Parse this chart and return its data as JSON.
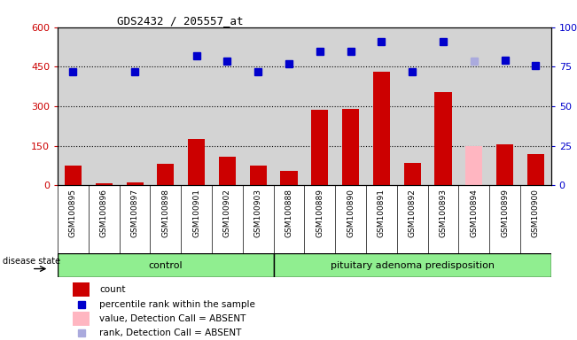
{
  "title": "GDS2432 / 205557_at",
  "samples": [
    "GSM100895",
    "GSM100896",
    "GSM100897",
    "GSM100898",
    "GSM100901",
    "GSM100902",
    "GSM100903",
    "GSM100888",
    "GSM100889",
    "GSM100890",
    "GSM100891",
    "GSM100892",
    "GSM100893",
    "GSM100894",
    "GSM100899",
    "GSM100900"
  ],
  "counts": [
    75,
    8,
    10,
    80,
    175,
    110,
    75,
    55,
    285,
    290,
    430,
    85,
    355,
    148,
    155,
    118
  ],
  "counts_absent": [
    false,
    false,
    false,
    false,
    false,
    false,
    false,
    false,
    false,
    false,
    false,
    false,
    false,
    true,
    false,
    false
  ],
  "percentile_ranks": [
    430,
    null,
    430,
    null,
    490,
    470,
    432,
    460,
    510,
    510,
    545,
    430,
    545,
    470,
    475,
    455
  ],
  "percentile_ranks_absent": [
    false,
    true,
    false,
    true,
    false,
    false,
    false,
    false,
    false,
    false,
    false,
    false,
    false,
    true,
    false,
    false
  ],
  "control_count": 7,
  "left_ylim": [
    0,
    600
  ],
  "left_yticks": [
    0,
    150,
    300,
    450,
    600
  ],
  "right_ylim": [
    0,
    100
  ],
  "right_yticks": [
    0,
    25,
    50,
    75,
    100
  ],
  "right_yticklabels": [
    "0",
    "25",
    "50",
    "75",
    "100%"
  ],
  "bar_color": "#cc0000",
  "bar_absent_color": "#ffb6c1",
  "rank_color": "#0000cc",
  "rank_absent_color": "#aaaadd",
  "background_color": "#d3d3d3",
  "group_color": "#90ee90",
  "disease_state_label": "disease state",
  "control_label": "control",
  "pituitary_label": "pituitary adenoma predisposition"
}
